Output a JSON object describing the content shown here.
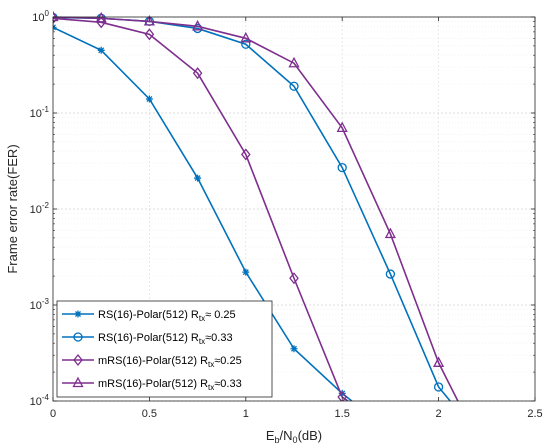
{
  "chart_data": {
    "type": "line",
    "title": "",
    "xlabel": {
      "base": "E",
      "sub1": "b",
      "mid": "/N",
      "sub2": "0",
      "tail": "(dB)"
    },
    "ylabel": "Frame error rate(FER)",
    "xlim": [
      0,
      2.5
    ],
    "ylim": [
      0.0001,
      1
    ],
    "yscale": "log",
    "grid": true,
    "legend_position": "bottom-left",
    "xticks": [
      "0",
      "0.5",
      "1",
      "1.5",
      "2",
      "2.5"
    ],
    "yticks": [
      {
        "base": "10",
        "exp": "-4"
      },
      {
        "base": "10",
        "exp": "-3"
      },
      {
        "base": "10",
        "exp": "-2"
      },
      {
        "base": "10",
        "exp": "-1"
      },
      {
        "base": "10",
        "exp": "0"
      }
    ],
    "x": [
      0,
      0.25,
      0.5,
      0.75,
      1,
      1.25,
      1.5,
      1.75,
      2,
      2.25
    ],
    "series": [
      {
        "name_prefix": "RS(16)-Polar(512) R",
        "name_sub": "tx",
        "name_suffix": "≈ 0.25",
        "color": "#0072BD",
        "marker": "asterisk",
        "x": [
          0,
          0.25,
          0.5,
          0.75,
          1,
          1.25,
          1.5,
          1.55
        ],
        "values": [
          0.78,
          0.45,
          0.14,
          0.021,
          0.0022,
          0.00035,
          0.00012,
          0.0001
        ]
      },
      {
        "name_prefix": "RS(16)-Polar(512) R",
        "name_sub": "tx",
        "name_suffix": "≈0.33",
        "color": "#0072BD",
        "marker": "circle",
        "x": [
          0,
          0.25,
          0.5,
          0.75,
          1,
          1.25,
          1.5,
          1.75,
          2,
          2.06
        ],
        "values": [
          0.99,
          0.97,
          0.9,
          0.76,
          0.52,
          0.19,
          0.027,
          0.0021,
          0.00014,
          0.0001
        ]
      },
      {
        "name_prefix": "mRS(16)-Polar(512) R",
        "name_sub": "tx",
        "name_suffix": "≈0.25",
        "color": "#7E2F8E",
        "marker": "diamond",
        "x": [
          0,
          0.25,
          0.5,
          0.75,
          1,
          1.25,
          1.5,
          1.53
        ],
        "values": [
          0.97,
          0.88,
          0.66,
          0.26,
          0.037,
          0.0019,
          0.00011,
          0.0001
        ]
      },
      {
        "name_prefix": "mRS(16)-Polar(512) R",
        "name_sub": "tx",
        "name_suffix": "≈0.33",
        "color": "#7E2F8E",
        "marker": "triangle",
        "x": [
          0,
          0.25,
          0.5,
          0.75,
          1,
          1.25,
          1.5,
          1.75,
          2,
          2.1
        ],
        "values": [
          1.0,
          0.97,
          0.9,
          0.8,
          0.6,
          0.33,
          0.07,
          0.0055,
          0.00025,
          0.0001
        ]
      }
    ]
  }
}
